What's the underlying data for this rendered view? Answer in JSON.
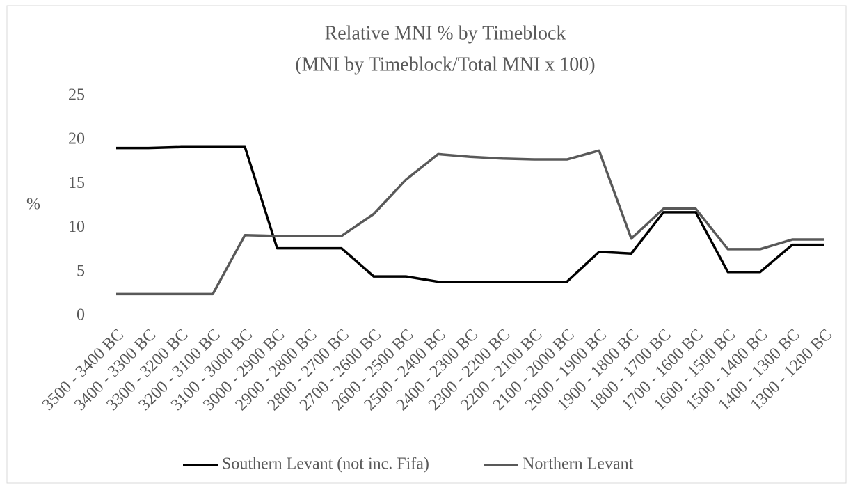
{
  "chart_data": {
    "type": "line",
    "title": "Relative MNI % by Timeblock",
    "subtitle": "(MNI by Timeblock/Total MNI x 100)",
    "y_label": "%",
    "categories": [
      "3500 - 3400 BC",
      "3400 - 3300 BC",
      "3300 - 3200 BC",
      "3200 - 3100 BC",
      "3100 - 3000 BC",
      "3000 - 2900 BC",
      "2900 - 2800 BC",
      "2800 - 2700 BC",
      "2700 - 2600 BC",
      "2600 - 2500 BC",
      "2500 - 2400 BC",
      "2400 - 2300 BC",
      "2300 - 2200 BC",
      "2200 - 2100 BC",
      "2100 - 2000 BC",
      "2000 - 1900 BC",
      "1900 - 1800 BC",
      "1800 - 1700 BC",
      "1700 - 1600 BC",
      "1600 - 1500 BC",
      "1500 - 1400 BC",
      "1400 - 1300 BC",
      "1300 - 1200 BC"
    ],
    "series": [
      {
        "name": "Southern Levant (not inc. Fifa)",
        "color": "#000000",
        "values": [
          19.1,
          19.1,
          19.2,
          19.2,
          19.2,
          7.7,
          7.7,
          7.7,
          4.5,
          4.5,
          3.9,
          3.9,
          3.9,
          3.9,
          3.9,
          7.3,
          7.1,
          11.8,
          11.8,
          5.0,
          5.0,
          8.1,
          8.1
        ]
      },
      {
        "name": "Northern Levant",
        "color": "#595959",
        "values": [
          2.5,
          2.5,
          2.5,
          2.5,
          9.2,
          9.1,
          9.1,
          9.1,
          11.6,
          15.5,
          18.4,
          18.1,
          17.9,
          17.8,
          17.8,
          18.8,
          8.8,
          12.2,
          12.2,
          7.6,
          7.6,
          8.7,
          8.7
        ]
      }
    ],
    "ylim": [
      0,
      25
    ],
    "yticks": [
      0,
      5,
      10,
      15,
      20,
      25
    ],
    "grid": false,
    "legend": "bottom"
  }
}
